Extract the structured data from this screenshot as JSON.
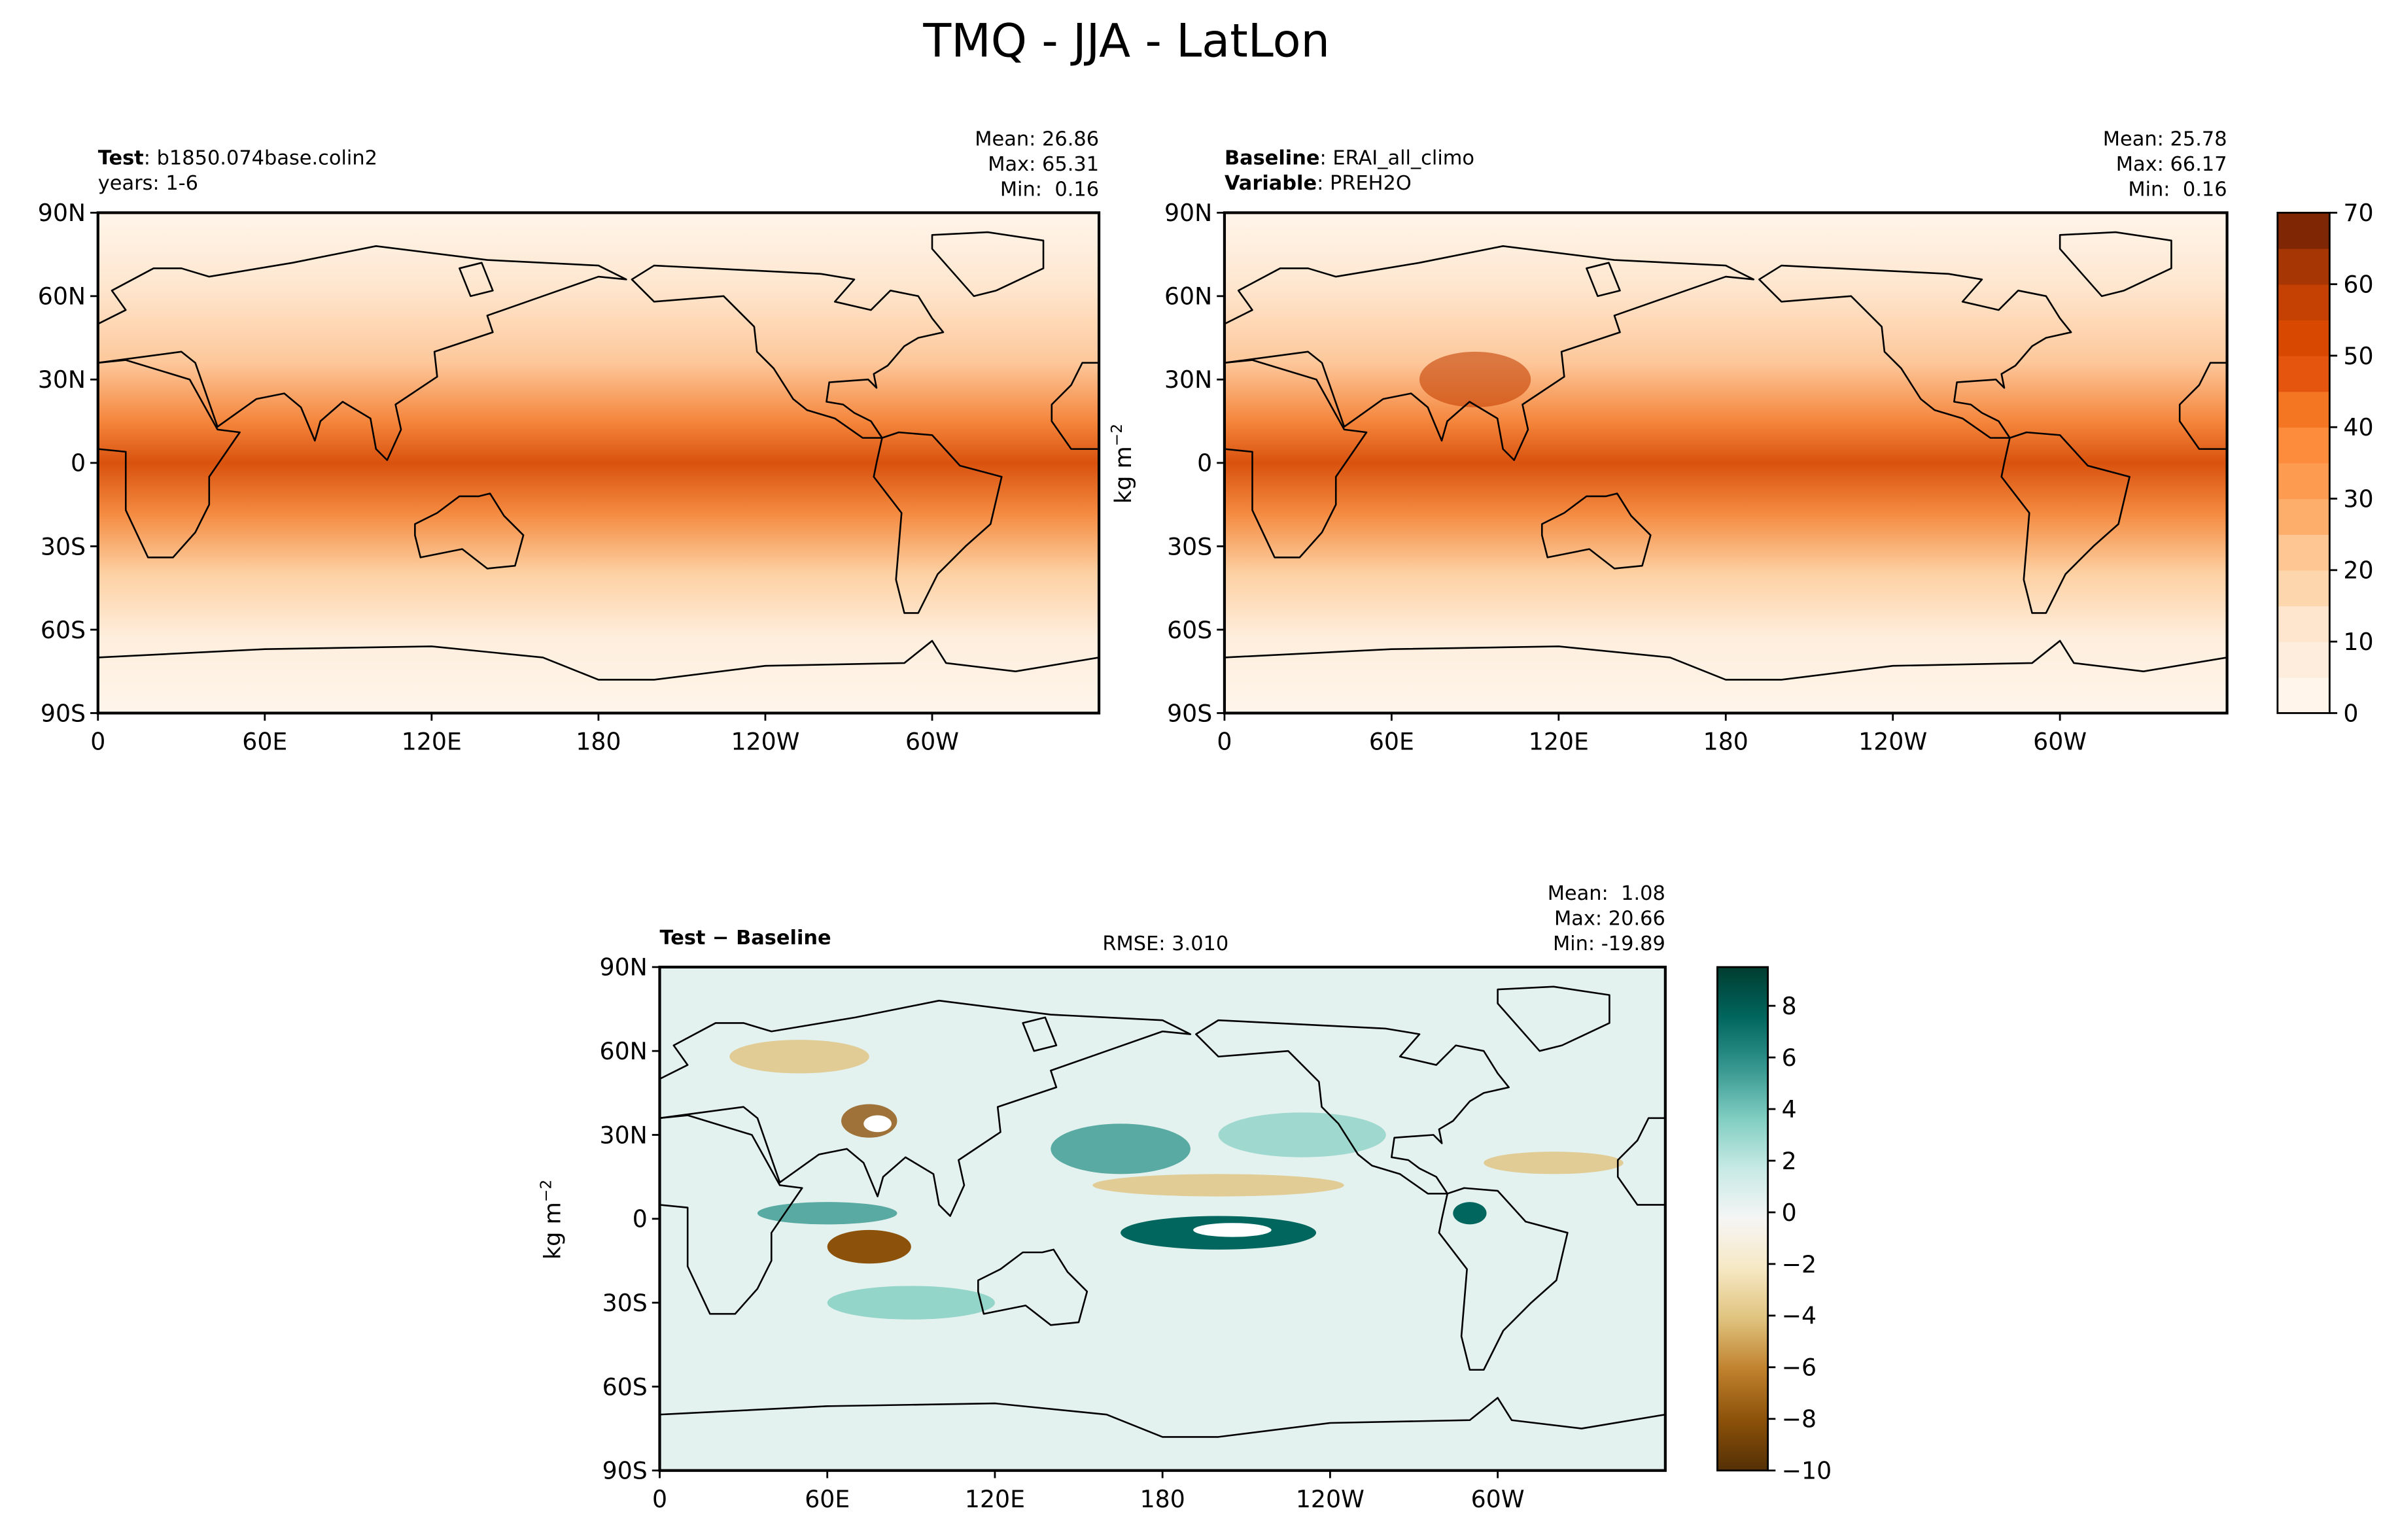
{
  "title": "TMQ - JJA - LatLon",
  "lat_labels": [
    "90N",
    "60N",
    "30N",
    "0",
    "30S",
    "60S",
    "90S"
  ],
  "lon_labels": [
    "0",
    "60E",
    "120E",
    "180",
    "120W",
    "60W"
  ],
  "units": {
    "base": "kg m",
    "exp": "−2"
  },
  "panels": [
    {
      "heading": [
        {
          "bold": "Test",
          "text": ": b1850.074base.colin2"
        },
        {
          "text": "years: 1-6"
        }
      ],
      "stats": [
        "Mean: 26.86",
        "Max: 65.31",
        "Min:  0.16"
      ]
    },
    {
      "heading": [
        {
          "bold": "Baseline",
          "text": ": ERAI_all_climo"
        },
        {
          "bold": "Variable",
          "text": ": PREH2O"
        }
      ],
      "stats": [
        "Mean: 25.78",
        "Max: 66.17",
        "Min:  0.16"
      ]
    },
    {
      "heading": [
        {
          "bold": "Test − Baseline"
        }
      ],
      "center": "RMSE: 3.010",
      "stats": [
        "Mean:  1.08",
        "Max: 20.66",
        "Min: -19.89"
      ]
    }
  ],
  "colorbars": [
    {
      "ylim": [
        0,
        70
      ],
      "yticks": [
        0,
        10,
        20,
        30,
        40,
        50,
        60,
        70
      ],
      "discrete": true,
      "colors": [
        "#fff5eb",
        "#feeddc",
        "#fee6ce",
        "#fdd6ae",
        "#fdc692",
        "#fdae6b",
        "#fd9b50",
        "#fd8d3c",
        "#f57622",
        "#e6550d",
        "#d84801",
        "#c44103",
        "#a63603",
        "#7f2704"
      ]
    },
    {
      "ylim": [
        -10,
        9.5
      ],
      "yticks": [
        {
          "value": -10,
          "label": "−10"
        },
        {
          "value": -8,
          "label": "−8"
        },
        {
          "value": -6,
          "label": "−6"
        },
        {
          "value": -4,
          "label": "−4"
        },
        {
          "value": -2,
          "label": "−2"
        },
        0,
        2,
        4,
        6,
        8
      ],
      "discrete": false,
      "colors": [
        "#543005",
        "#8c510a",
        "#bf812d",
        "#dfc27d",
        "#f6e8c3",
        "#f5f5f5",
        "#c7eae5",
        "#80cdc1",
        "#35978f",
        "#01665e",
        "#003c30"
      ]
    }
  ]
}
